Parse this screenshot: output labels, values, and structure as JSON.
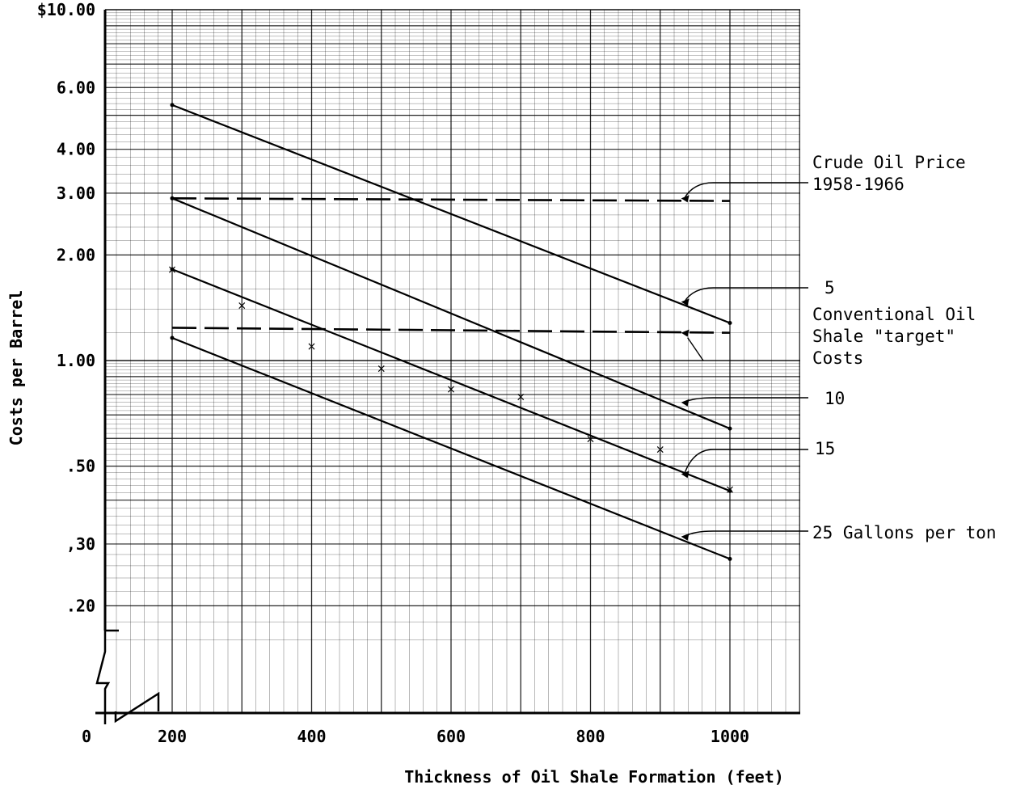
{
  "chart_data": {
    "type": "line",
    "xlabel": "Thickness of Oil Shale Formation (feet)",
    "ylabel": "Costs per Barrel",
    "x_scale": "linear",
    "y_scale": "log",
    "xlim": [
      0,
      1100
    ],
    "ylim": [
      0.15,
      10
    ],
    "grid": true,
    "x_ticks": [
      {
        "value": 0,
        "label": "0"
      },
      {
        "value": 200,
        "label": "200"
      },
      {
        "value": 400,
        "label": "400"
      },
      {
        "value": 600,
        "label": "600"
      },
      {
        "value": 800,
        "label": "800"
      },
      {
        "value": 1000,
        "label": "1000"
      }
    ],
    "y_ticks": [
      {
        "value": 10,
        "label": "$10.00"
      },
      {
        "value": 6,
        "label": "6.00"
      },
      {
        "value": 4,
        "label": "4.00"
      },
      {
        "value": 3,
        "label": "3.00"
      },
      {
        "value": 2,
        "label": "2.00"
      },
      {
        "value": 1,
        "label": "1.00"
      },
      {
        "value": 0.5,
        "label": ".50"
      },
      {
        "value": 0.3,
        "label": ",30"
      },
      {
        "value": 0.2,
        "label": ".20"
      }
    ],
    "series": [
      {
        "name": "5",
        "style": "solid",
        "x": [
          200,
          1000
        ],
        "y": [
          5.35,
          1.28
        ]
      },
      {
        "name": "10",
        "style": "solid",
        "x": [
          200,
          1000
        ],
        "y": [
          2.9,
          0.64
        ]
      },
      {
        "name": "15",
        "style": "solid",
        "x": [
          200,
          1000
        ],
        "y": [
          1.82,
          0.425
        ]
      },
      {
        "name": "25 Gallons per ton",
        "style": "solid",
        "x": [
          200,
          1000
        ],
        "y": [
          1.16,
          0.272
        ]
      },
      {
        "name": "Crude Oil Price 1958-1966",
        "style": "dashed",
        "x": [
          200,
          1000
        ],
        "y": [
          2.9,
          2.85
        ]
      },
      {
        "name": "Conventional Oil Shale \"target\" Costs",
        "style": "dashed",
        "x": [
          200,
          1000
        ],
        "y": [
          1.24,
          1.2
        ]
      }
    ],
    "scatter_points": {
      "x": [
        200,
        300,
        400,
        500,
        600,
        700,
        800,
        900,
        1000
      ],
      "y": [
        1.82,
        1.44,
        1.1,
        0.95,
        0.83,
        0.79,
        0.6,
        0.56,
        0.43
      ]
    },
    "annotations": [
      {
        "id": "crude",
        "lines": [
          "Crude Oil Price",
          "1958-1966"
        ],
        "x": 930,
        "y": 2.9
      },
      {
        "id": "s5",
        "lines": [
          "5"
        ],
        "x": 930,
        "y": 1.47
      },
      {
        "id": "conv",
        "lines": [
          "Conventional Oil",
          "Shale \"target\"",
          "Costs"
        ],
        "x": 930,
        "y": 1.2
      },
      {
        "id": "s10",
        "lines": [
          "10"
        ],
        "x": 930,
        "y": 0.76
      },
      {
        "id": "s15",
        "lines": [
          "15"
        ],
        "x": 930,
        "y": 0.475
      },
      {
        "id": "s25",
        "lines": [
          "25 Gallons per ton"
        ],
        "x": 930,
        "y": 0.315
      }
    ]
  }
}
